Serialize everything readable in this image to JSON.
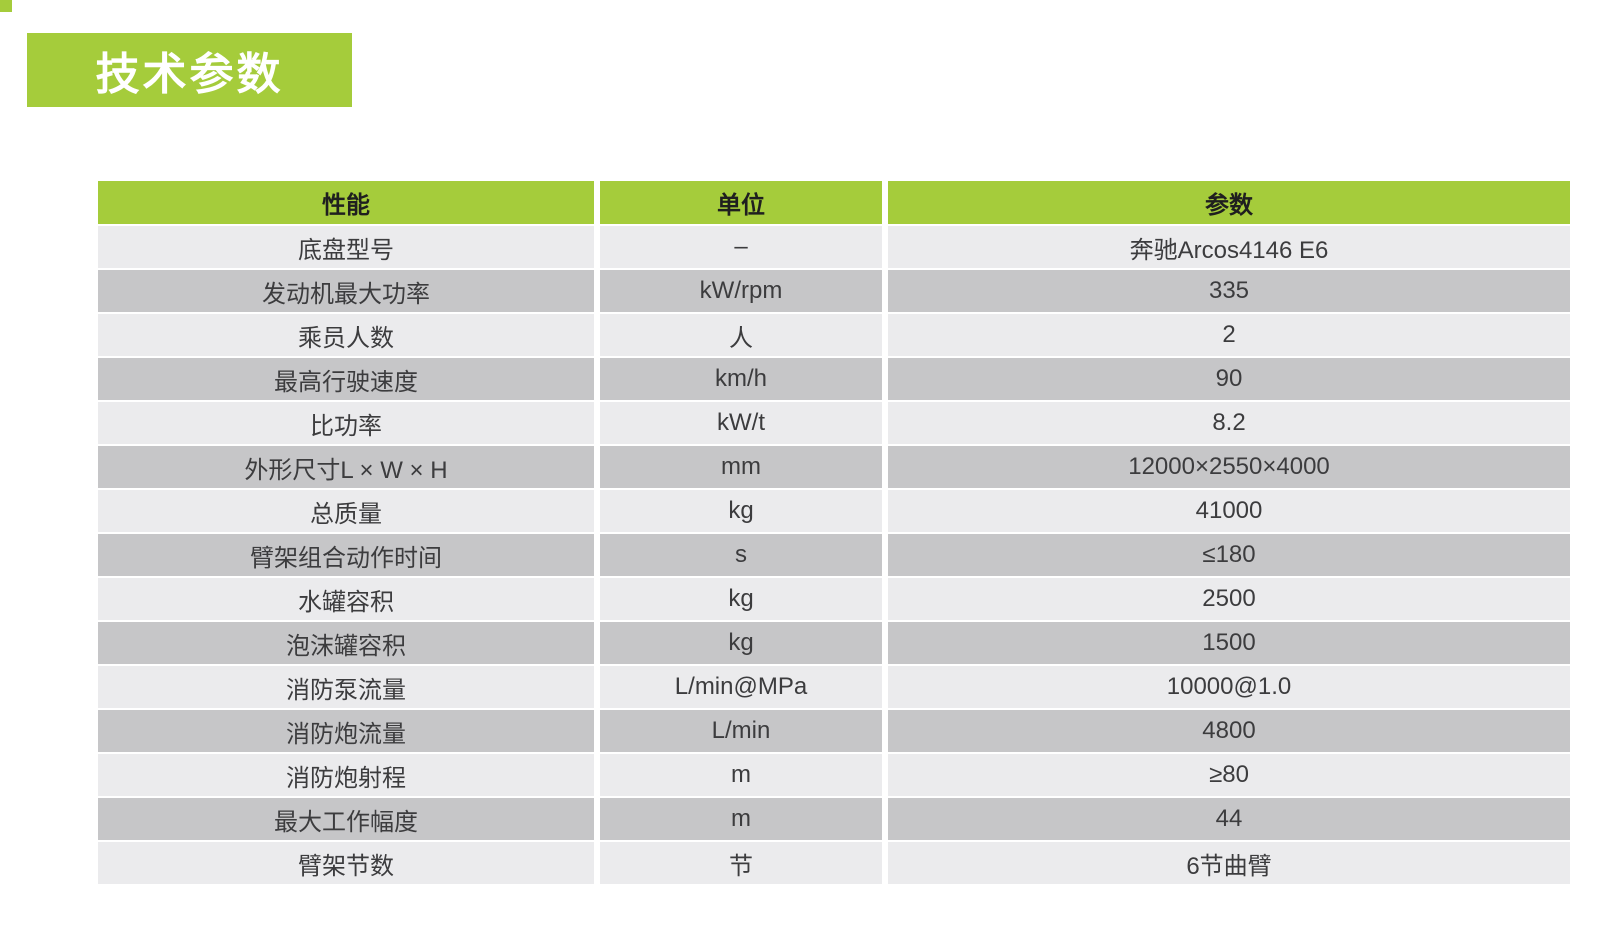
{
  "page": {
    "title_badge": "技术参数"
  },
  "colors": {
    "accent_green": "#a5cc3b",
    "row_light": "#ebebed",
    "row_dark": "#c6c6c8",
    "title_text": "#ffffff",
    "cell_text": "#3c3c3e"
  },
  "table": {
    "headers": [
      "性能",
      "单位",
      "参数"
    ],
    "rows": [
      [
        "底盘型号",
        "–",
        "奔驰Arcos4146 E6"
      ],
      [
        "发动机最大功率",
        "kW/rpm",
        "335"
      ],
      [
        "乘员人数",
        "人",
        "2"
      ],
      [
        "最高行驶速度",
        "km/h",
        "90"
      ],
      [
        "比功率",
        "kW/t",
        "8.2"
      ],
      [
        "外形尺寸L × W × H",
        "mm",
        "12000×2550×4000"
      ],
      [
        "总质量",
        "kg",
        "41000"
      ],
      [
        "臂架组合动作时间",
        "s",
        "≤180"
      ],
      [
        "水罐容积",
        "kg",
        "2500"
      ],
      [
        "泡沫罐容积",
        "kg",
        "1500"
      ],
      [
        "消防泵流量",
        "L/min@MPa",
        "10000@1.0"
      ],
      [
        "消防炮流量",
        "L/min",
        "4800"
      ],
      [
        "消防炮射程",
        "m",
        "≥80"
      ],
      [
        "最大工作幅度",
        "m",
        "44"
      ],
      [
        "臂架节数",
        "节",
        "6节曲臂"
      ]
    ]
  }
}
